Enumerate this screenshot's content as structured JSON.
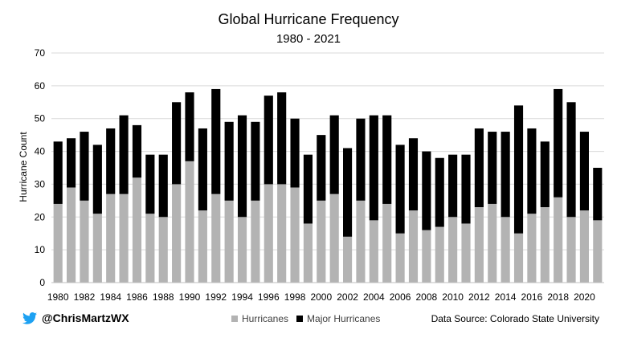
{
  "header": {
    "title": "Global Hurricane Frequency",
    "subtitle": "1980 - 2021"
  },
  "colors": {
    "hurricanes": "#b3b3b3",
    "major": "#000000",
    "axis": "#bfbfbf",
    "grid": "#d9d9d9",
    "twitter": "#1da1f2"
  },
  "footer": {
    "handle": "@ChrisMartzWX",
    "twitter_icon": "twitter-bird-icon",
    "legend": [
      "Hurricanes",
      "Major Hurricanes"
    ],
    "source": "Data Source: Colorado State University"
  },
  "chart_data": {
    "type": "bar",
    "stacked": true,
    "title": "Global Hurricane Frequency",
    "subtitle": "1980 - 2021",
    "ylabel": "Hurricane Count",
    "ylim": [
      0,
      70
    ],
    "yticks": [
      0,
      10,
      20,
      30,
      40,
      50,
      60,
      70
    ],
    "grid": true,
    "legend_position": "bottom",
    "x": [
      1980,
      1981,
      1982,
      1983,
      1984,
      1985,
      1986,
      1987,
      1988,
      1989,
      1990,
      1991,
      1992,
      1993,
      1994,
      1995,
      1996,
      1997,
      1998,
      1999,
      2000,
      2001,
      2002,
      2003,
      2004,
      2005,
      2006,
      2007,
      2008,
      2009,
      2010,
      2011,
      2012,
      2013,
      2014,
      2015,
      2016,
      2017,
      2018,
      2019,
      2020,
      2021
    ],
    "xtick_labels": [
      "1980",
      "",
      "1982",
      "",
      "1984",
      "",
      "1986",
      "",
      "1988",
      "",
      "1990",
      "",
      "1992",
      "",
      "1994",
      "",
      "1996",
      "",
      "1998",
      "",
      "2000",
      "",
      "2002",
      "",
      "2004",
      "",
      "2006",
      "",
      "2008",
      "",
      "2010",
      "",
      "2012",
      "",
      "2014",
      "",
      "2016",
      "",
      "2018",
      "",
      "2020",
      ""
    ],
    "series": [
      {
        "name": "Hurricanes",
        "values": [
          24,
          29,
          25,
          21,
          27,
          27,
          32,
          21,
          20,
          30,
          37,
          22,
          27,
          25,
          20,
          25,
          30,
          30,
          29,
          18,
          25,
          27,
          14,
          25,
          19,
          24,
          15,
          22,
          16,
          17,
          20,
          18,
          23,
          24,
          20,
          15,
          21,
          23,
          26,
          20,
          22,
          19
        ]
      },
      {
        "name": "Major Hurricanes",
        "values": [
          19,
          15,
          21,
          21,
          20,
          24,
          16,
          18,
          19,
          25,
          21,
          25,
          32,
          24,
          31,
          24,
          27,
          28,
          21,
          21,
          20,
          24,
          27,
          25,
          32,
          27,
          27,
          22,
          24,
          21,
          19,
          21,
          24,
          22,
          26,
          39,
          26,
          20,
          33,
          35,
          24,
          16
        ]
      }
    ]
  }
}
